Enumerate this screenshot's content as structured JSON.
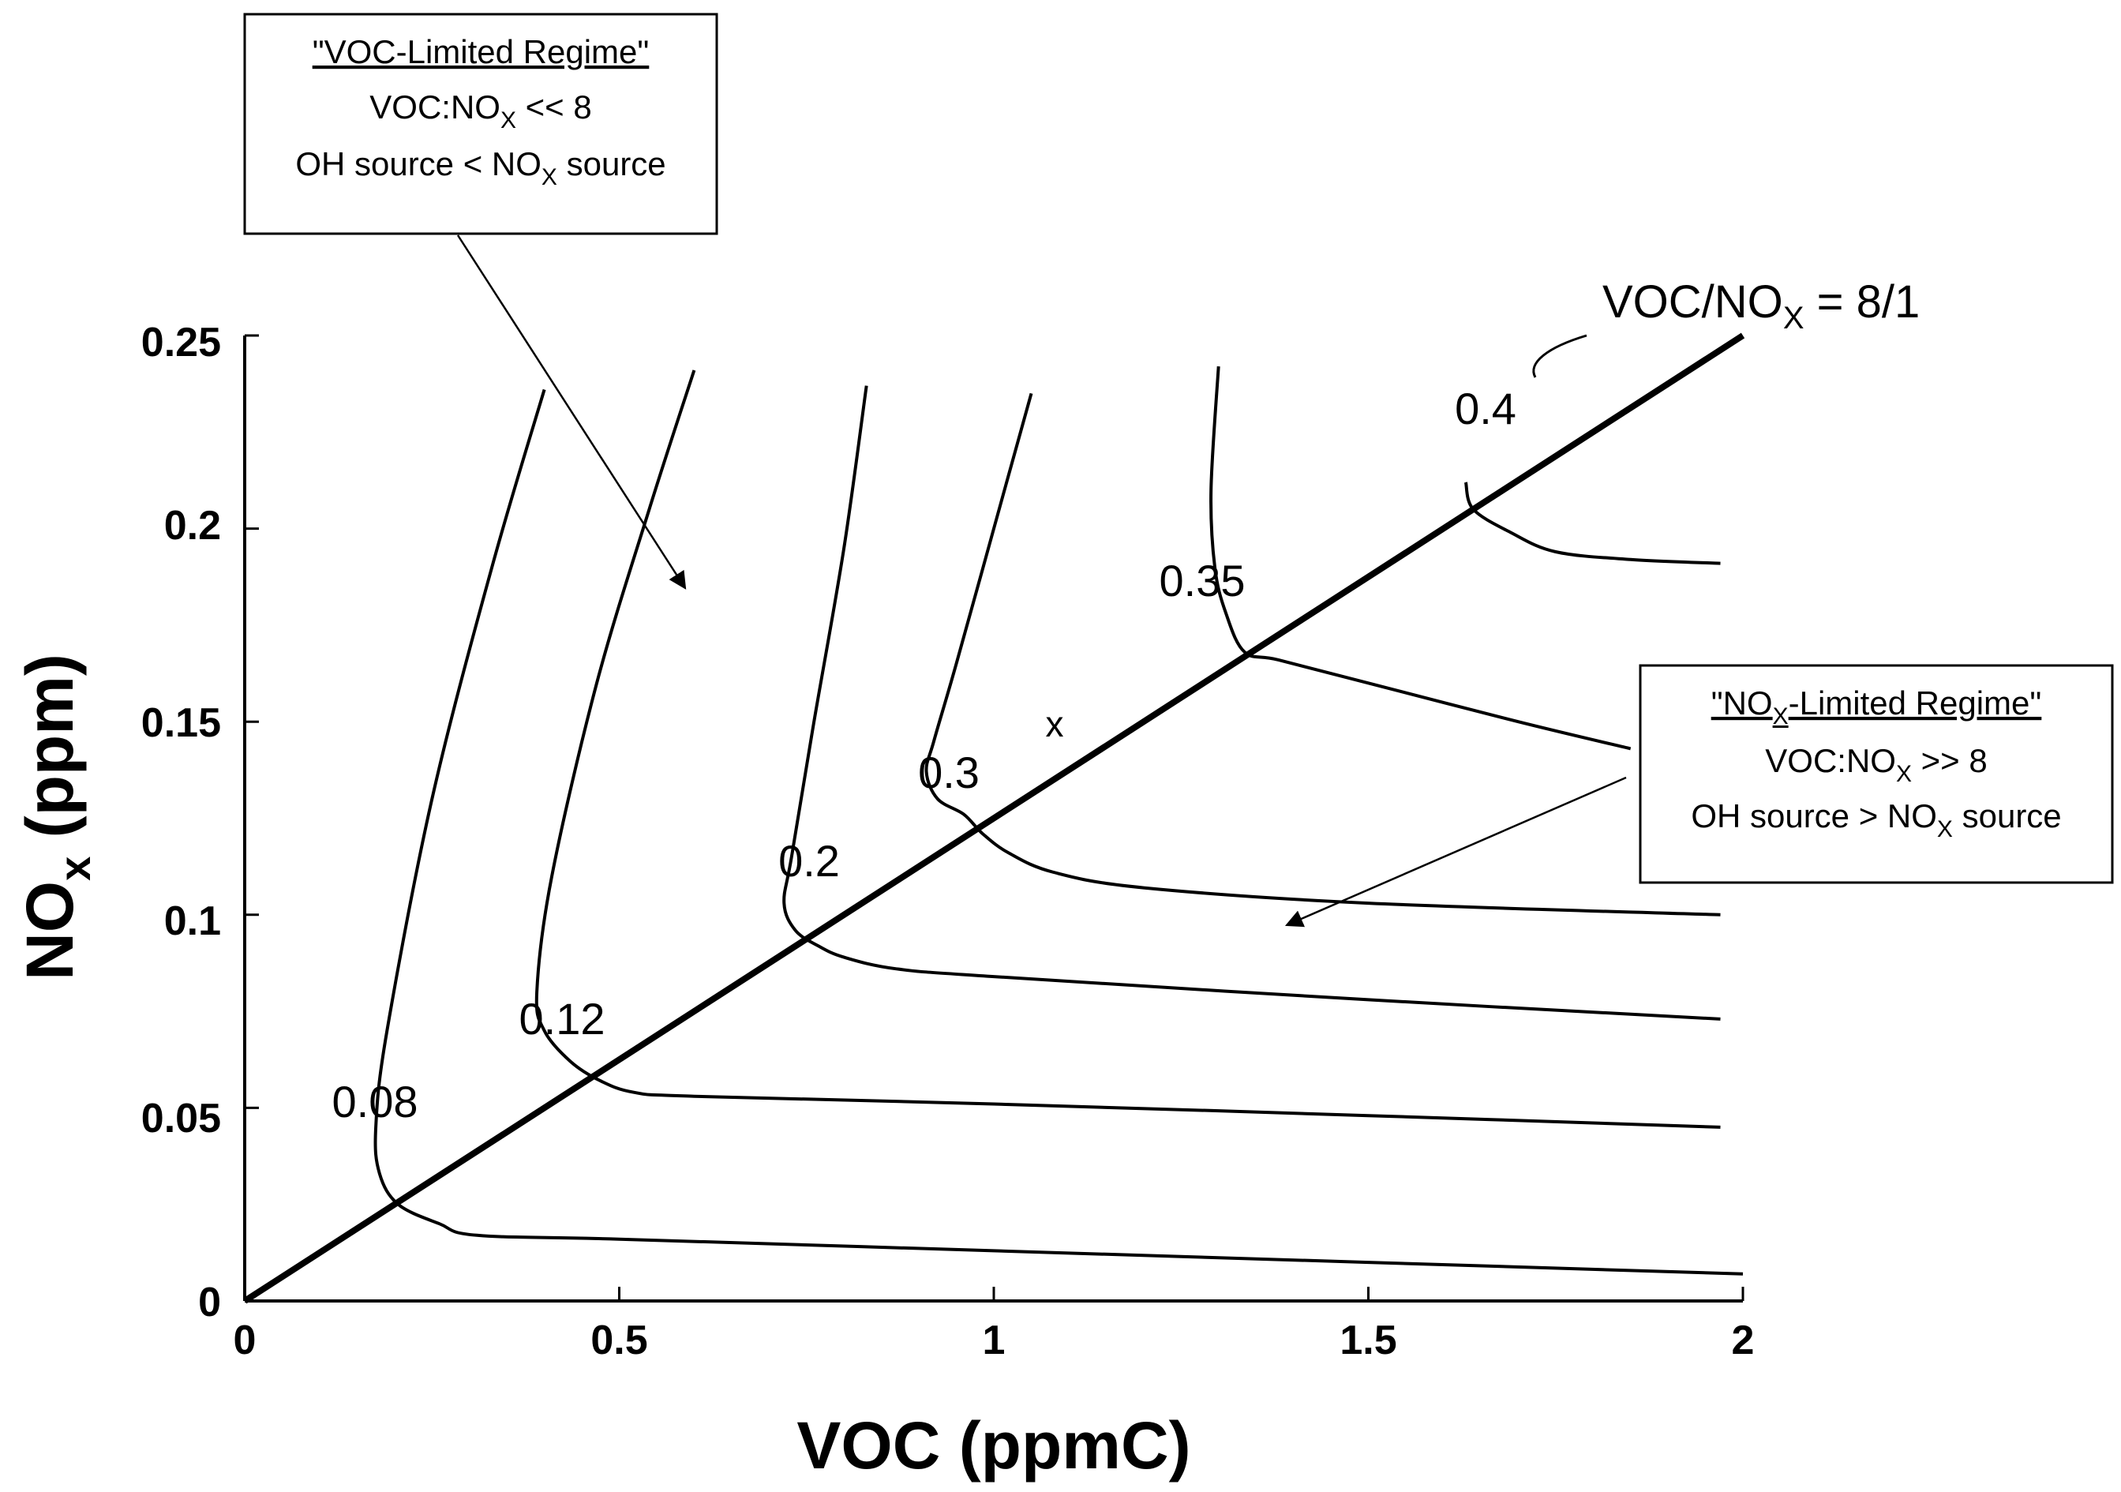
{
  "chart_data": {
    "type": "line",
    "title": "",
    "xlabel": "VOC (ppmC)",
    "ylabel_main": "NO",
    "ylabel_sub": "x",
    "ylabel_tail": " (ppm)",
    "xlim": [
      0,
      2
    ],
    "ylim": [
      0,
      0.25
    ],
    "x_ticks": [
      {
        "value": 0,
        "label": "0"
      },
      {
        "value": 0.5,
        "label": "0.5"
      },
      {
        "value": 1,
        "label": "1"
      },
      {
        "value": 1.5,
        "label": "1.5"
      },
      {
        "value": 2,
        "label": "2"
      }
    ],
    "y_ticks": [
      {
        "value": 0,
        "label": "0"
      },
      {
        "value": 0.05,
        "label": "0.05"
      },
      {
        "value": 0.1,
        "label": "0.1"
      },
      {
        "value": 0.15,
        "label": "0.15"
      },
      {
        "value": 0.2,
        "label": "0.2"
      },
      {
        "value": 0.25,
        "label": "0.25"
      }
    ],
    "ridge_line": {
      "label_main": "VOC/NO",
      "label_sub": "X",
      "label_tail": " = 8/1",
      "points": [
        [
          0,
          0
        ],
        [
          2,
          0.25
        ]
      ]
    },
    "series": [
      {
        "name": "0.08",
        "points": [
          [
            0.4,
            0.236
          ],
          [
            0.33,
            0.19
          ],
          [
            0.25,
            0.13
          ],
          [
            0.19,
            0.07
          ],
          [
            0.175,
            0.045
          ],
          [
            0.18,
            0.033
          ],
          [
            0.205,
            0.025
          ],
          [
            0.26,
            0.02
          ],
          [
            0.31,
            0.017
          ],
          [
            0.5,
            0.016
          ],
          [
            1.0,
            0.013
          ],
          [
            1.5,
            0.01
          ],
          [
            2.0,
            0.007
          ]
        ]
      },
      {
        "name": "0.12",
        "points": [
          [
            0.6,
            0.241
          ],
          [
            0.54,
            0.205
          ],
          [
            0.47,
            0.16
          ],
          [
            0.41,
            0.11
          ],
          [
            0.39,
            0.08
          ],
          [
            0.4,
            0.07
          ],
          [
            0.435,
            0.062
          ],
          [
            0.475,
            0.057
          ],
          [
            0.52,
            0.054
          ],
          [
            0.6,
            0.053
          ],
          [
            1.0,
            0.051
          ],
          [
            1.5,
            0.048
          ],
          [
            1.97,
            0.045
          ]
        ]
      },
      {
        "name": "0.2",
        "points": [
          [
            0.83,
            0.237
          ],
          [
            0.8,
            0.195
          ],
          [
            0.76,
            0.15
          ],
          [
            0.73,
            0.115
          ],
          [
            0.72,
            0.103
          ],
          [
            0.735,
            0.096
          ],
          [
            0.765,
            0.092
          ],
          [
            0.8,
            0.089
          ],
          [
            0.87,
            0.086
          ],
          [
            1.0,
            0.084
          ],
          [
            1.5,
            0.078
          ],
          [
            1.97,
            0.073
          ]
        ]
      },
      {
        "name": "0.3",
        "points": [
          [
            1.05,
            0.235
          ],
          [
            1.0,
            0.2
          ],
          [
            0.95,
            0.165
          ],
          [
            0.92,
            0.145
          ],
          [
            0.91,
            0.137
          ],
          [
            0.925,
            0.13
          ],
          [
            0.96,
            0.126
          ],
          [
            0.985,
            0.121
          ],
          [
            1.02,
            0.116
          ],
          [
            1.08,
            0.111
          ],
          [
            1.2,
            0.107
          ],
          [
            1.5,
            0.103
          ],
          [
            1.97,
            0.1
          ]
        ]
      },
      {
        "name": "0.35",
        "points": [
          [
            1.3,
            0.242
          ],
          [
            1.29,
            0.21
          ],
          [
            1.295,
            0.19
          ],
          [
            1.31,
            0.178
          ],
          [
            1.335,
            0.168
          ],
          [
            1.38,
            0.166
          ],
          [
            1.5,
            0.16
          ],
          [
            1.7,
            0.15
          ],
          [
            1.85,
            0.143
          ]
        ]
      },
      {
        "name": "0.4",
        "points": [
          [
            1.63,
            0.212
          ],
          [
            1.64,
            0.205
          ],
          [
            1.69,
            0.199
          ],
          [
            1.75,
            0.194
          ],
          [
            1.85,
            0.192
          ],
          [
            1.97,
            0.191
          ]
        ]
      }
    ],
    "x_marker": {
      "label": "x",
      "x": 1.08,
      "y": 0.143
    },
    "annotations": [
      {
        "id": "voc-limited",
        "title": "\"VOC-Limited Regime\"",
        "line2_main": "VOC:NO",
        "line2_sub": "X",
        "line2_tail": " << 8",
        "line3_main": "OH source < NO",
        "line3_sub": "X",
        "line3_tail": " source"
      },
      {
        "id": "nox-limited",
        "title_main": "\"NO",
        "title_sub": "X",
        "title_tail": "-Limited Regime\"",
        "line2_main": "VOC:NO",
        "line2_sub": "X",
        "line2_tail": " >> 8",
        "line3_main": "OH source > NO",
        "line3_sub": "X",
        "line3_tail": " source"
      }
    ]
  }
}
